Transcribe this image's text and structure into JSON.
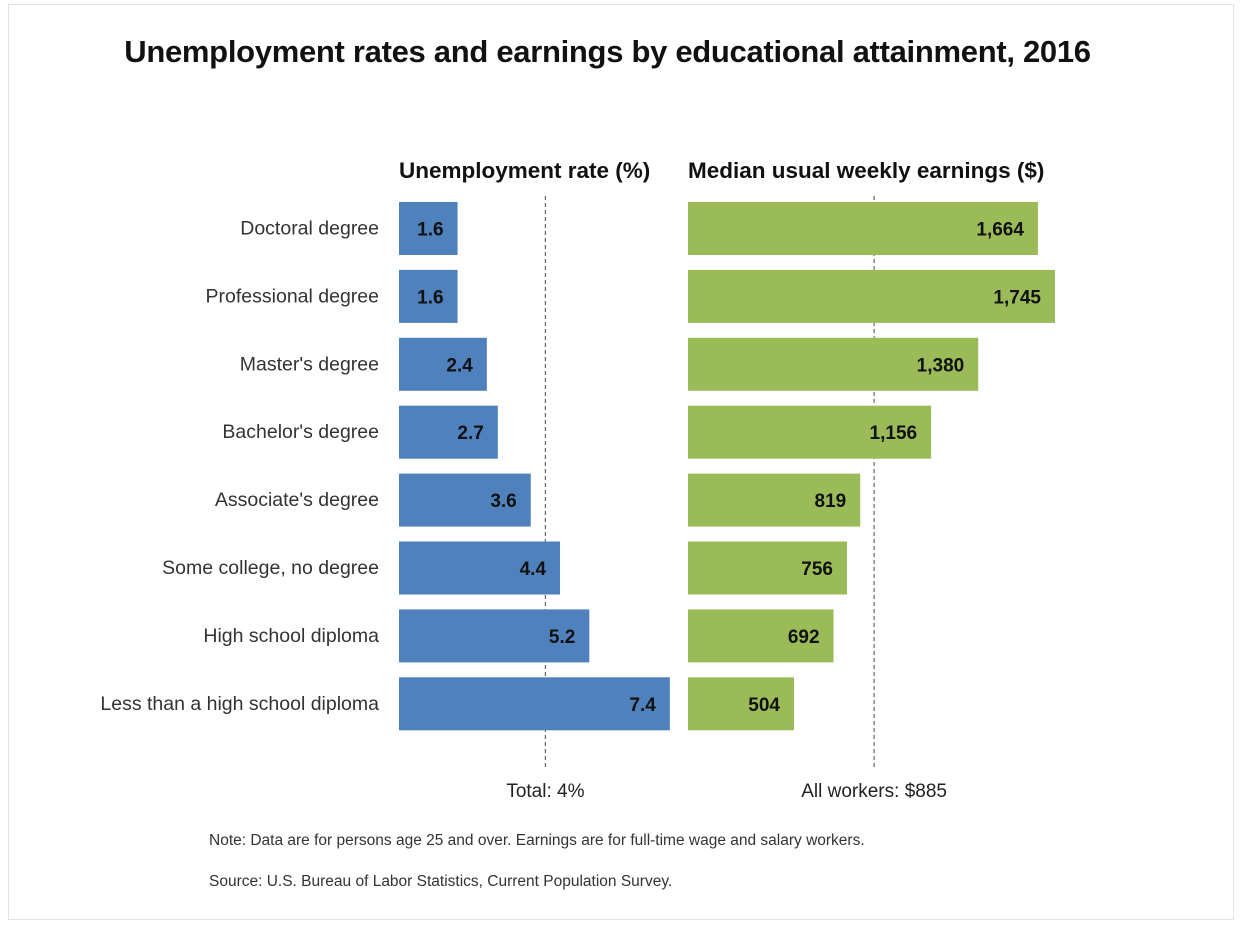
{
  "chart_data": {
    "type": "bar",
    "title": "Unemployment rates and earnings by educational attainment, 2016",
    "categories": [
      "Doctoral degree",
      "Professional degree",
      "Master's degree",
      "Bachelor's degree",
      "Associate's degree",
      "Some college, no degree",
      "High school diploma",
      "Less than a high school diploma"
    ],
    "panels": [
      {
        "title": "Unemployment rate (%)",
        "values": [
          1.6,
          1.6,
          2.4,
          2.7,
          3.6,
          4.4,
          5.2,
          7.4
        ],
        "labels": [
          "1.6",
          "1.6",
          "2.4",
          "2.7",
          "3.6",
          "4.4",
          "5.2",
          "7.4"
        ],
        "color": "#4f81bd",
        "reference_value": 4,
        "reference_label": "Total: 4%"
      },
      {
        "title": "Median usual weekly earnings ($)",
        "values": [
          1664,
          1745,
          1380,
          1156,
          819,
          756,
          692,
          504
        ],
        "labels": [
          "1,664",
          "1,745",
          "1,380",
          "1,156",
          "819",
          "756",
          "692",
          "504"
        ],
        "color": "#9bbb59",
        "reference_value": 885,
        "reference_label": "All workers: $885"
      }
    ],
    "note": "Note: Data are for persons age 25 and over. Earnings are for full-time wage and salary workers.",
    "source": "Source: U.S. Bureau of Labor Statistics, Current Population Survey."
  }
}
